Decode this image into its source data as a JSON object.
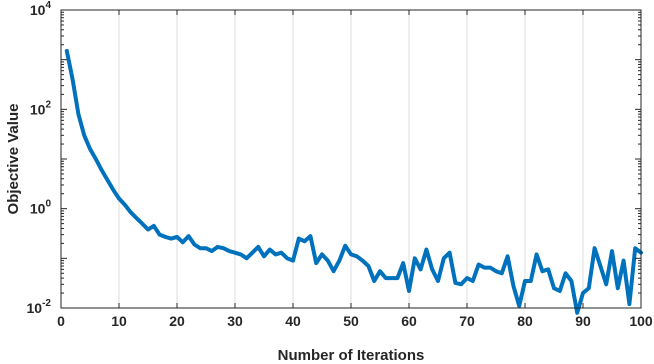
{
  "chart_data": {
    "type": "line",
    "xlabel": "Number of Iterations",
    "ylabel": "Objective Value",
    "xlim": [
      0,
      100
    ],
    "ylim": [
      0.01,
      10000
    ],
    "yscale": "log",
    "grid": "vertical",
    "x_ticks": [
      0,
      10,
      20,
      30,
      40,
      50,
      60,
      70,
      80,
      90,
      100
    ],
    "y_ticks": [
      {
        "value": 0.01,
        "base": "10",
        "exp": "-2"
      },
      {
        "value": 1,
        "base": "10",
        "exp": "0"
      },
      {
        "value": 100,
        "base": "10",
        "exp": "2"
      },
      {
        "value": 10000,
        "base": "10",
        "exp": "4"
      }
    ],
    "line_color": "#0072BD",
    "series": [
      {
        "x": [
          1,
          2,
          3,
          4,
          5,
          6,
          7,
          8,
          9,
          10,
          11,
          12,
          13,
          14,
          15,
          16,
          17,
          18,
          19,
          20,
          21,
          22,
          23,
          24,
          25,
          26,
          27,
          28,
          29,
          30,
          31,
          32,
          33,
          34,
          35,
          36,
          37,
          38,
          39,
          40,
          41,
          42,
          43,
          44,
          45,
          46,
          47,
          48,
          49,
          50,
          51,
          52,
          53,
          54,
          55,
          56,
          57,
          58,
          59,
          60,
          61,
          62,
          63,
          64,
          65,
          66,
          67,
          68,
          69,
          70,
          71,
          72,
          73,
          74,
          75,
          76,
          77,
          78,
          79,
          80,
          81,
          82,
          83,
          84,
          85,
          86,
          87,
          88,
          89,
          90,
          91,
          92,
          93,
          94,
          95,
          96,
          97,
          98,
          99,
          100
        ],
        "y": [
          1500,
          400,
          80,
          30,
          16,
          10,
          6,
          3.8,
          2.4,
          1.6,
          1.2,
          0.85,
          0.65,
          0.5,
          0.38,
          0.45,
          0.3,
          0.27,
          0.25,
          0.27,
          0.21,
          0.28,
          0.19,
          0.16,
          0.16,
          0.14,
          0.17,
          0.16,
          0.14,
          0.13,
          0.12,
          0.1,
          0.13,
          0.17,
          0.11,
          0.15,
          0.12,
          0.13,
          0.1,
          0.09,
          0.25,
          0.22,
          0.28,
          0.08,
          0.12,
          0.09,
          0.055,
          0.09,
          0.18,
          0.12,
          0.11,
          0.09,
          0.07,
          0.035,
          0.055,
          0.04,
          0.04,
          0.04,
          0.08,
          0.022,
          0.1,
          0.06,
          0.15,
          0.06,
          0.035,
          0.1,
          0.13,
          0.032,
          0.03,
          0.04,
          0.035,
          0.075,
          0.065,
          0.065,
          0.055,
          0.05,
          0.11,
          0.028,
          0.011,
          0.035,
          0.035,
          0.12,
          0.055,
          0.06,
          0.025,
          0.022,
          0.05,
          0.035,
          0.008,
          0.02,
          0.025,
          0.16,
          0.07,
          0.03,
          0.14,
          0.025,
          0.09,
          0.012,
          0.16,
          0.13
        ]
      }
    ]
  }
}
